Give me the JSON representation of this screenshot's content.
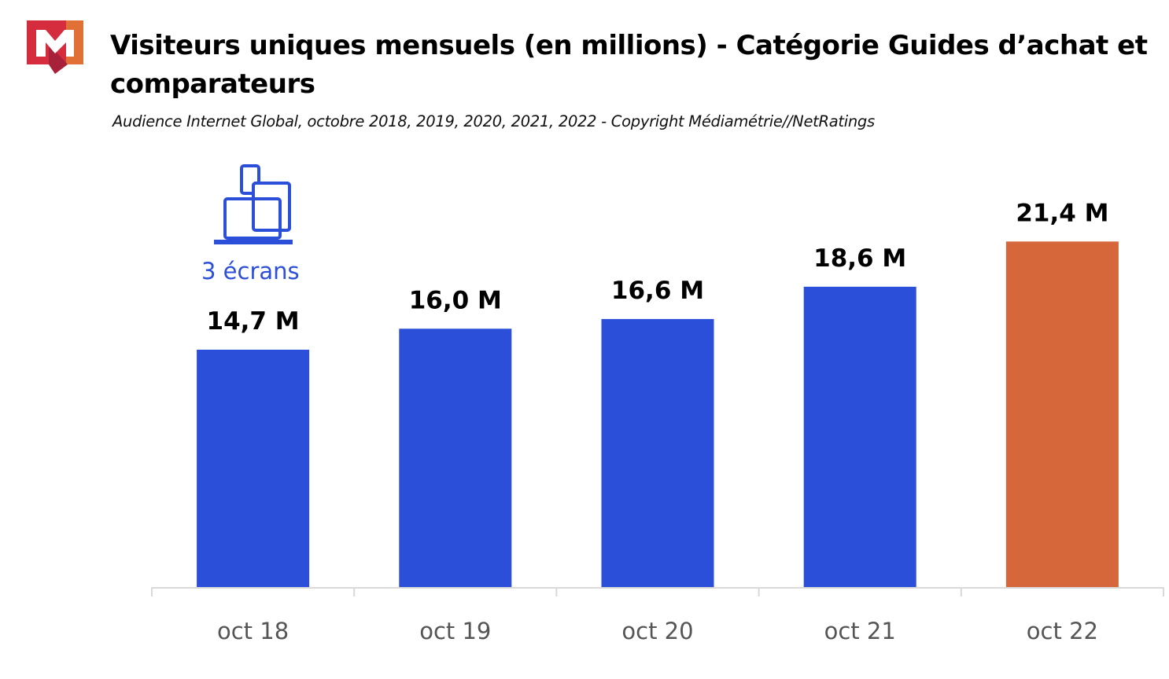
{
  "header": {
    "title": "Visiteurs uniques mensuels (en millions) - Catégorie Guides d’achat et comparateurs",
    "subtitle": "Audience Internet Global, octobre 2018, 2019, 2020, 2021, 2022 - Copyright Médiamétrie//NetRatings",
    "logo_text": "M"
  },
  "badge": {
    "icon": "devices-icon",
    "label": "3 écrans"
  },
  "colors": {
    "bar": "#2b4fd8",
    "highlight": "#d5673a",
    "axis": "#d9d9d9"
  },
  "chart_data": {
    "type": "bar",
    "title": "Visiteurs uniques mensuels (en millions) - Catégorie Guides d’achat et comparateurs",
    "categories": [
      "oct 18",
      "oct 19",
      "oct 20",
      "oct 21",
      "oct 22"
    ],
    "values": [
      14.7,
      16.0,
      16.6,
      18.6,
      21.4
    ],
    "data_labels": [
      "14,7 M",
      "16,0 M",
      "16,6 M",
      "18,6 M",
      "21,4 M"
    ],
    "highlighted_index": 4,
    "ylim": [
      0,
      22
    ],
    "grid": false,
    "xlabel": "",
    "ylabel": ""
  }
}
